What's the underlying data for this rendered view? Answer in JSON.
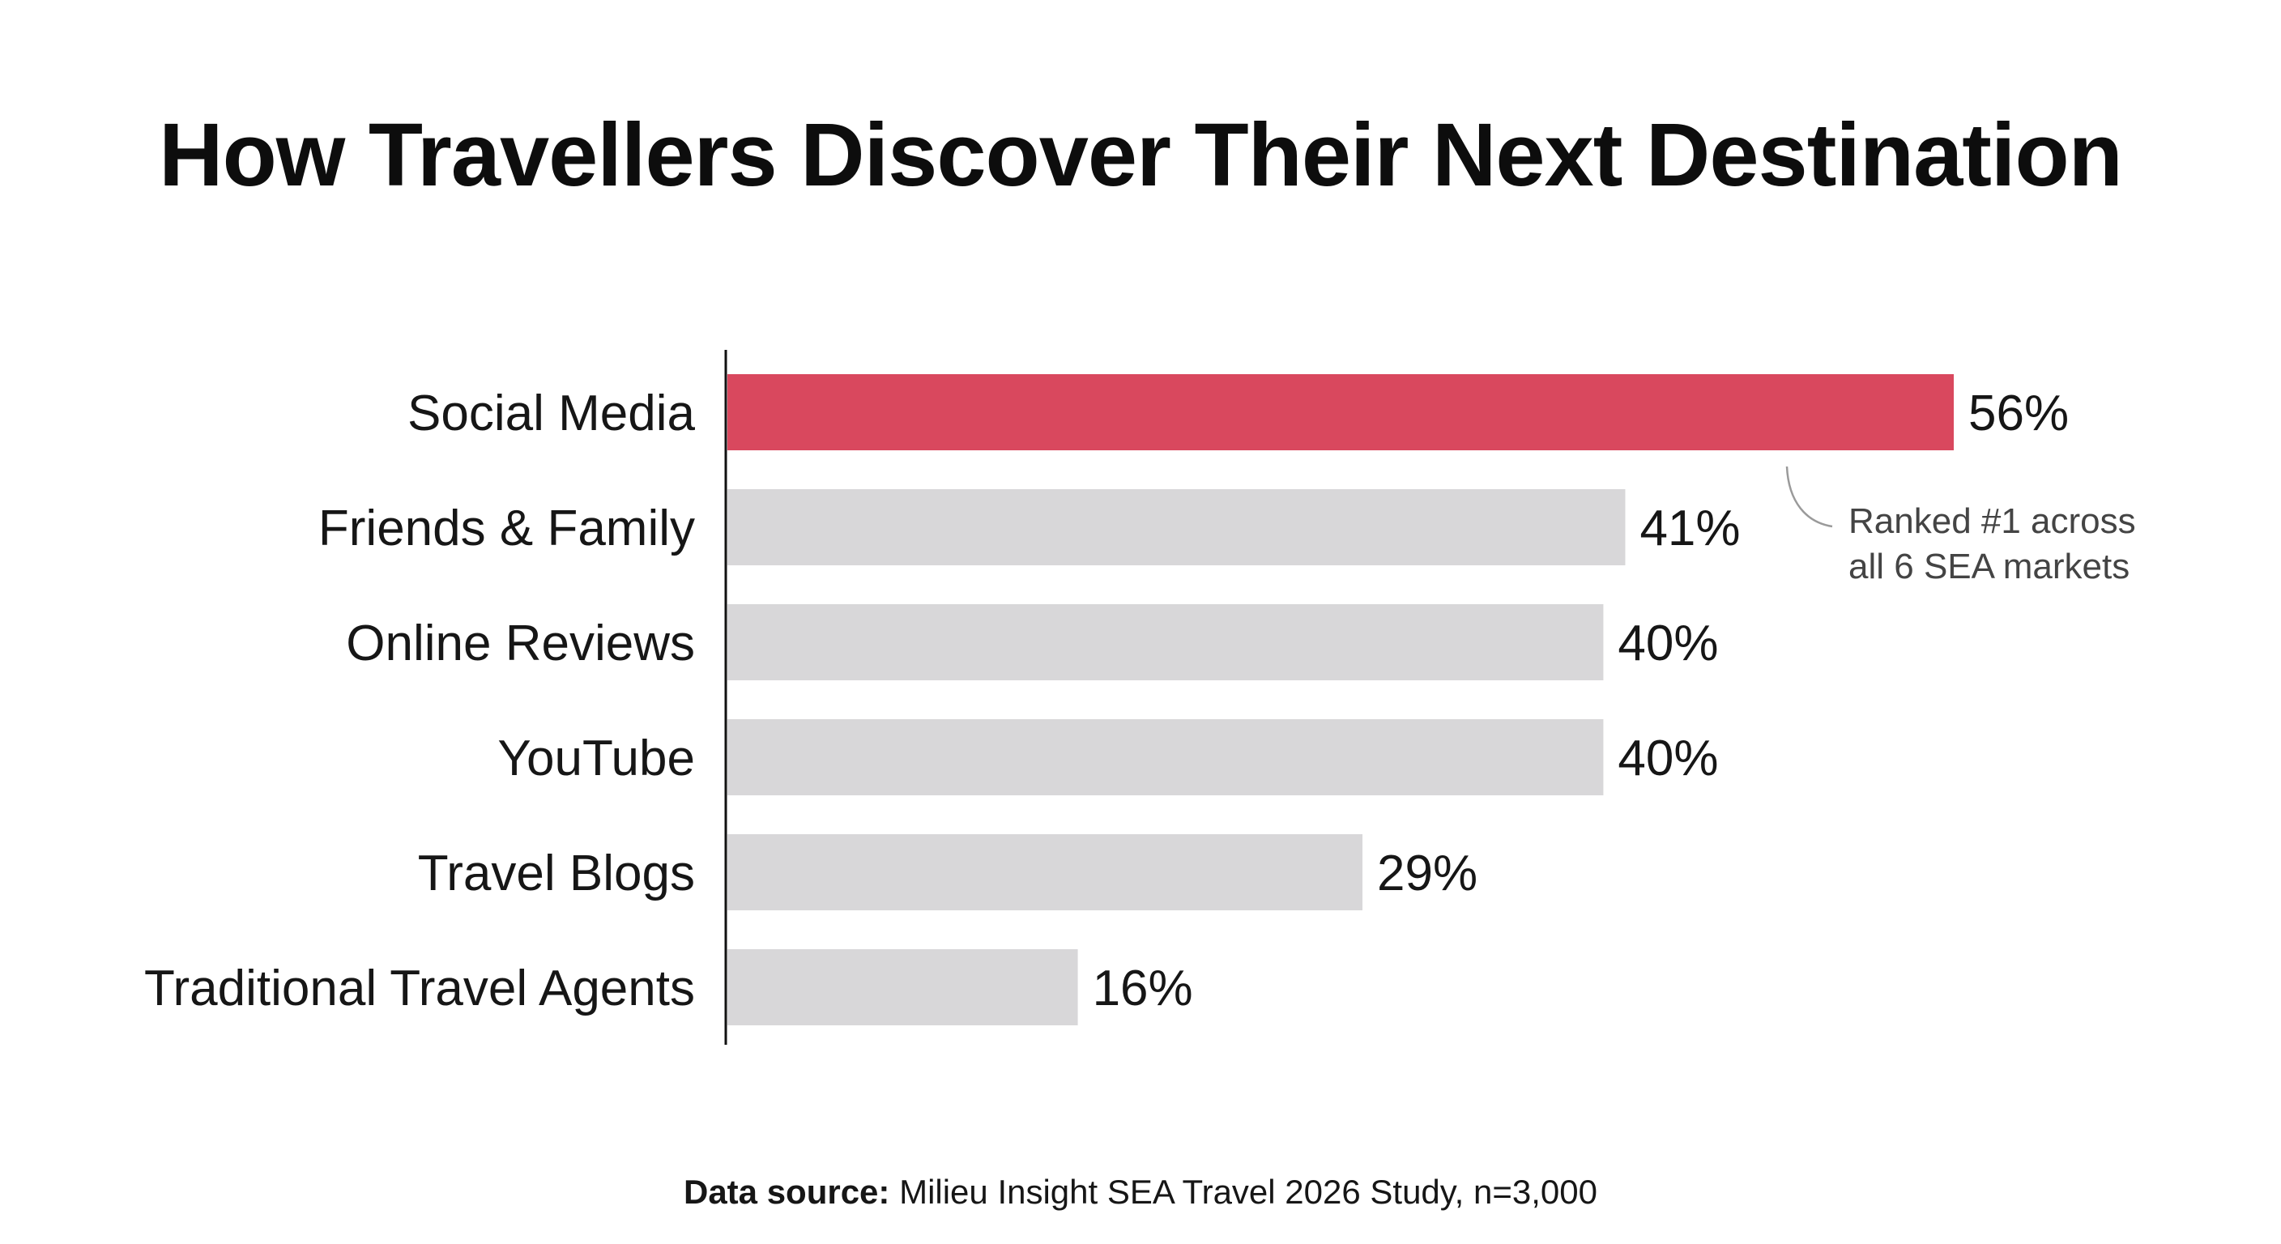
{
  "chart_data": {
    "type": "bar",
    "orientation": "horizontal",
    "title": "How Travellers Discover Their Next Destination",
    "categories": [
      "Social Media",
      "Friends & Family",
      "Online Reviews",
      "YouTube",
      "Travel Blogs",
      "Traditional Travel Agents"
    ],
    "values": [
      56,
      41,
      40,
      40,
      29,
      16
    ],
    "value_labels": [
      "56%",
      "41%",
      "40%",
      "40%",
      "29%",
      "16%"
    ],
    "unit": "%",
    "xlim": [
      0,
      56
    ],
    "grid": false,
    "highlight_index": 0,
    "colors": {
      "highlight": "#d9485e",
      "default": "#d8d7d9",
      "axis": "#111111",
      "annotation_line": "#9a9a9a"
    },
    "annotation": {
      "lines": [
        "Ranked #1 across",
        "all 6 SEA markets"
      ],
      "target": "Social Media"
    },
    "source_label": "Data source:",
    "source_text": "Milieu Insight SEA Travel 2026 Study, n=3,000"
  }
}
